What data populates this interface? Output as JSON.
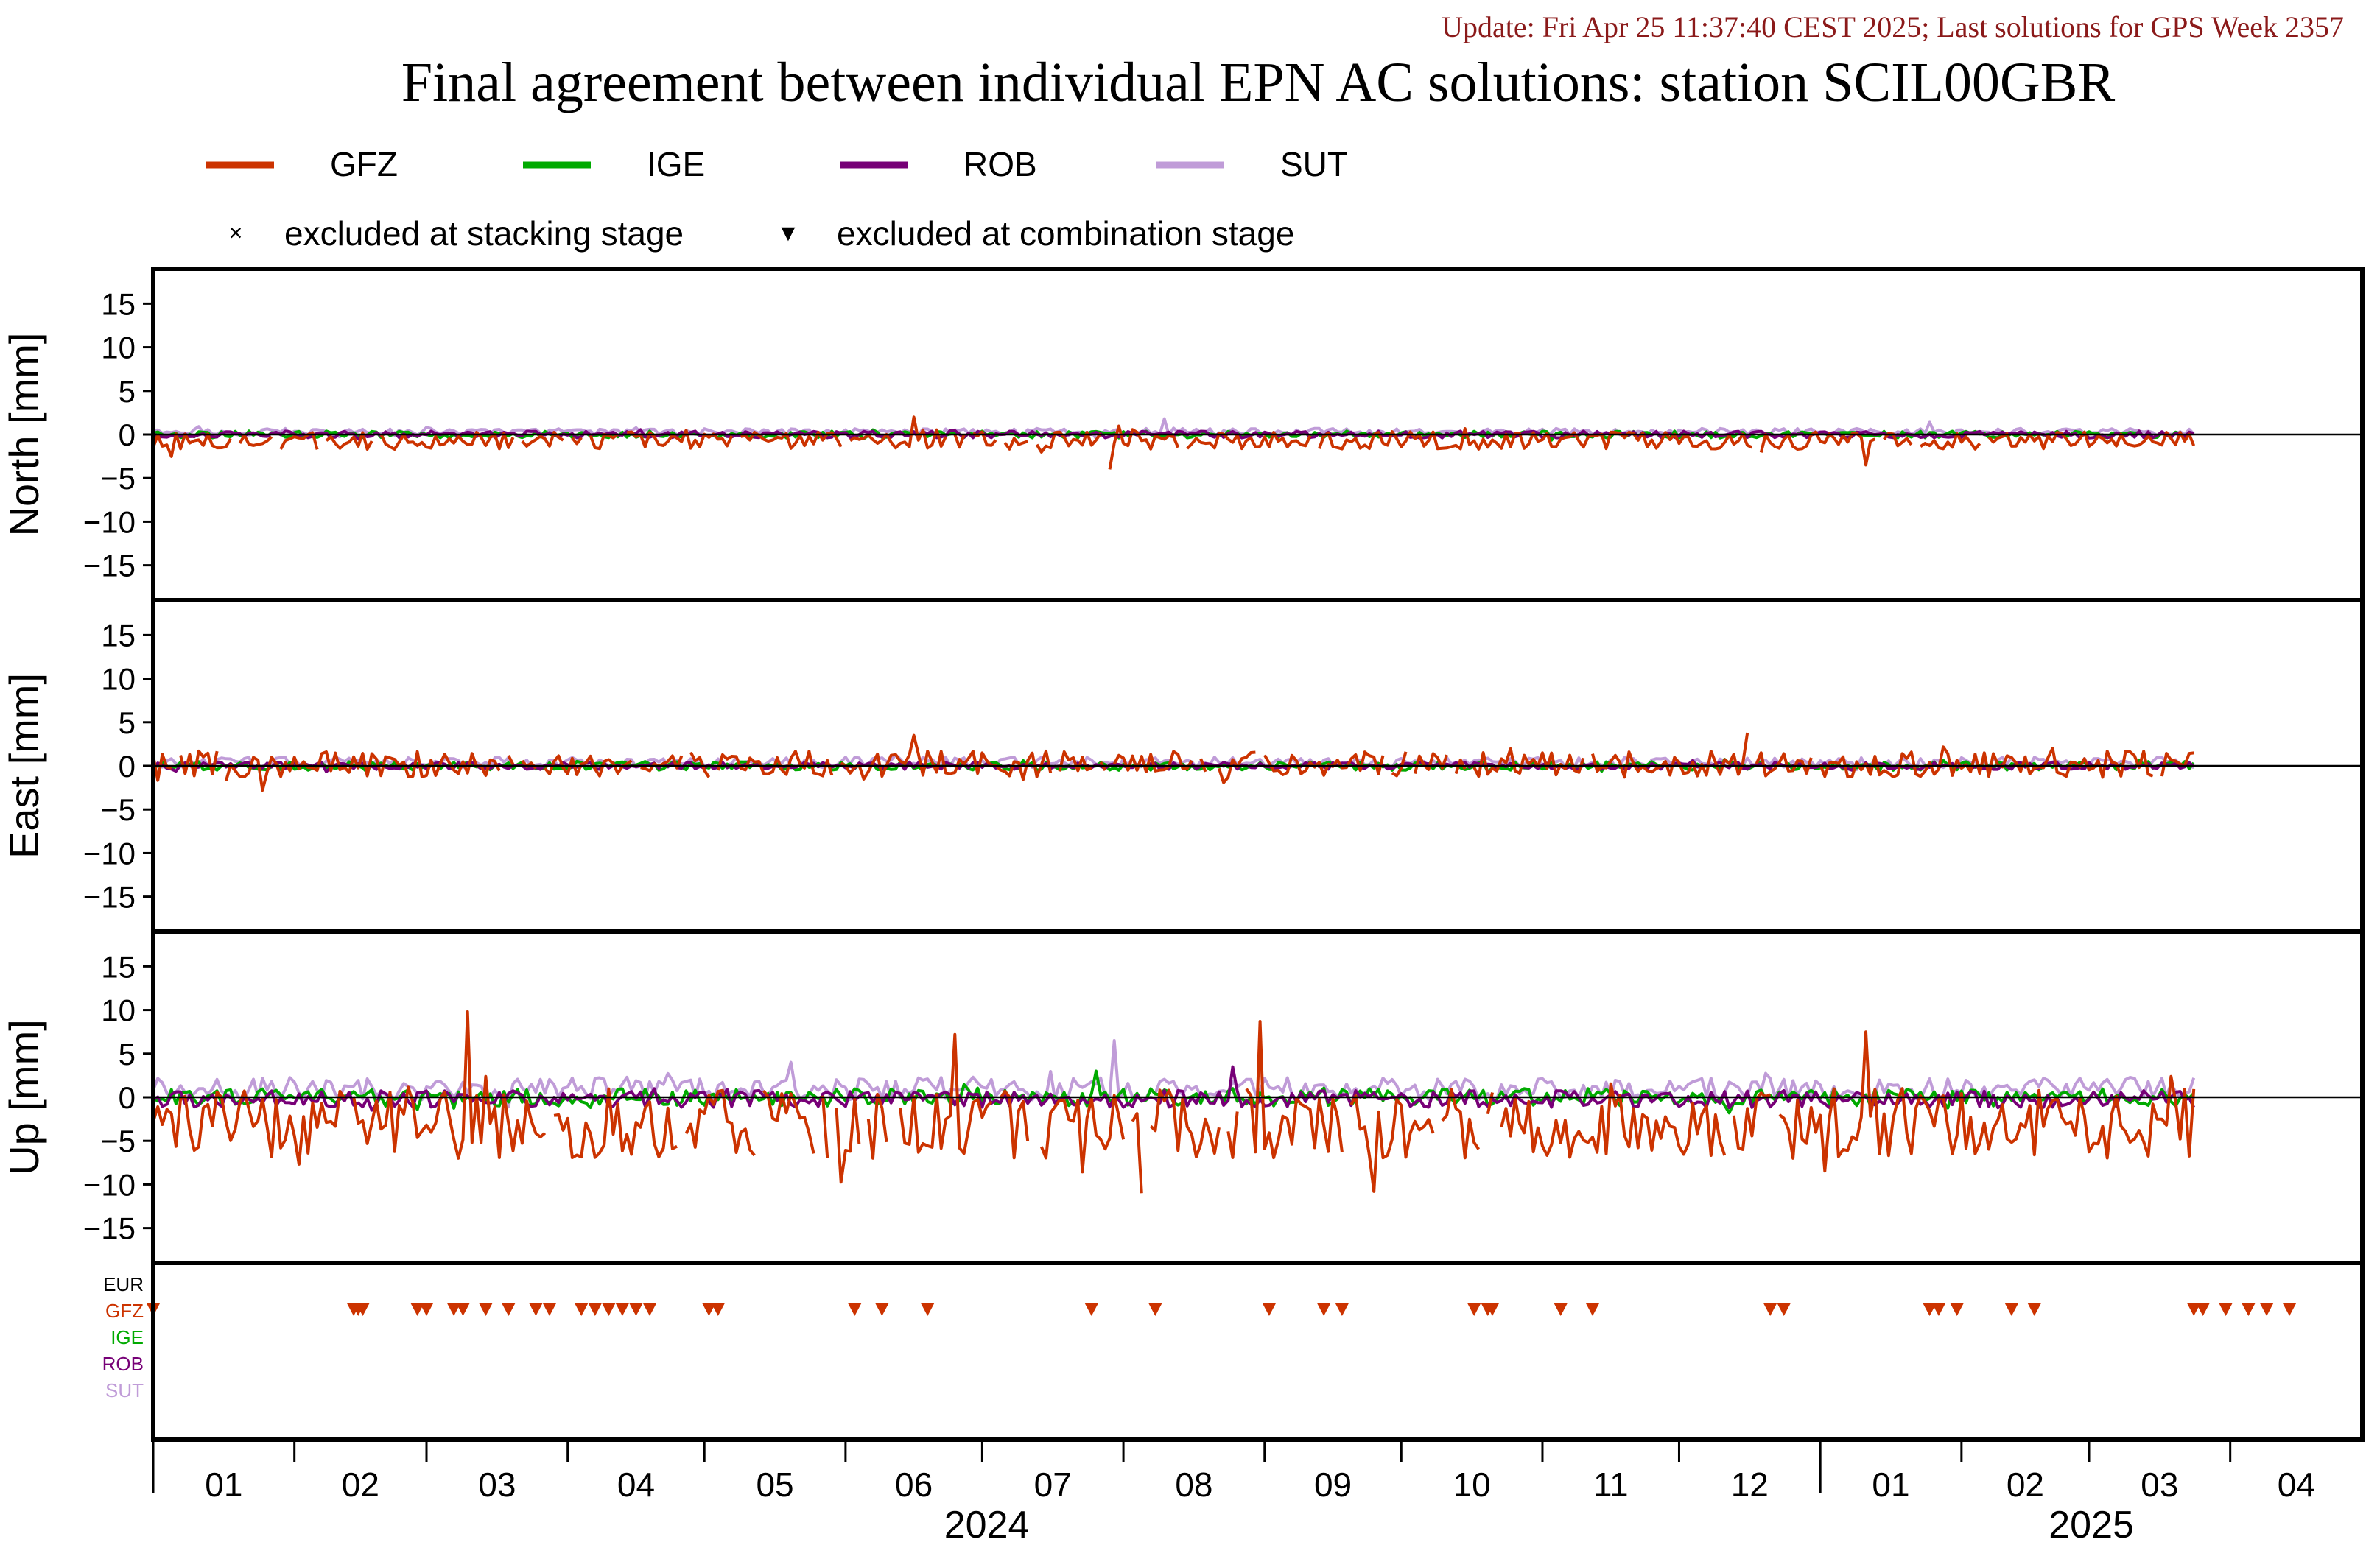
{
  "header": {
    "update": "Update: Fri Apr 25 11:37:40 CEST 2025; Last solutions for GPS Week 2357",
    "title": "Final agreement between individual EPN AC solutions: station SCIL00GBR"
  },
  "legend": {
    "series": [
      {
        "name": "GFZ",
        "color": "#cc3300"
      },
      {
        "name": "IGE",
        "color": "#00aa00"
      },
      {
        "name": "ROB",
        "color": "#770077"
      },
      {
        "name": "SUT",
        "color": "#c09cd8"
      }
    ],
    "markers": [
      {
        "symbol": "×",
        "label": "excluded at stacking stage"
      },
      {
        "symbol": "▼",
        "label": "excluded at combination stage"
      }
    ]
  },
  "exclusion_labels": [
    {
      "name": "EUR",
      "color": "#000000"
    },
    {
      "name": "GFZ",
      "color": "#cc3300"
    },
    {
      "name": "IGE",
      "color": "#00aa00"
    },
    {
      "name": "ROB",
      "color": "#770077"
    },
    {
      "name": "SUT",
      "color": "#c09cd8"
    }
  ],
  "x_axis": {
    "months": [
      "01",
      "02",
      "03",
      "04",
      "05",
      "06",
      "07",
      "08",
      "09",
      "10",
      "11",
      "12",
      "01",
      "02",
      "03",
      "04"
    ],
    "years": [
      "2024",
      "2025"
    ]
  },
  "chart_data": [
    {
      "type": "line",
      "ylabel": "North [mm]",
      "ylim": [
        -19,
        19
      ],
      "yticks": [
        15,
        10,
        5,
        0,
        -5,
        -10,
        -15
      ],
      "xlim": [
        "2024-01-01",
        "2025-04-30"
      ],
      "data_end": "2025-03-24",
      "series": [
        {
          "name": "GFZ",
          "mean": -0.7,
          "amplitude": 1.0,
          "spikes": [
            {
              "date": "2024-06-16",
              "value": 2.0
            },
            {
              "date": "2024-07-29",
              "value": -4.0
            },
            {
              "date": "2025-01-11",
              "value": -3.5
            }
          ]
        },
        {
          "name": "IGE",
          "mean": 0.0,
          "amplitude": 0.4,
          "spikes": []
        },
        {
          "name": "ROB",
          "mean": 0.0,
          "amplitude": 0.4,
          "spikes": []
        },
        {
          "name": "SUT",
          "mean": 0.3,
          "amplitude": 0.4,
          "spikes": [
            {
              "date": "2024-08-10",
              "value": 1.8
            },
            {
              "date": "2025-01-25",
              "value": 1.4
            }
          ]
        }
      ]
    },
    {
      "type": "line",
      "ylabel": "East [mm]",
      "ylim": [
        -19,
        19
      ],
      "yticks": [
        15,
        10,
        5,
        0,
        -5,
        -10,
        -15
      ],
      "xlim": [
        "2024-01-01",
        "2025-04-30"
      ],
      "data_end": "2025-03-24",
      "series": [
        {
          "name": "GFZ",
          "mean": 0.2,
          "amplitude": 1.5,
          "spikes": [
            {
              "date": "2024-06-16",
              "value": 3.5
            },
            {
              "date": "2024-12-16",
              "value": 3.8
            },
            {
              "date": "2024-01-25",
              "value": -2.8
            }
          ]
        },
        {
          "name": "IGE",
          "mean": 0.0,
          "amplitude": 0.5,
          "spikes": []
        },
        {
          "name": "ROB",
          "mean": 0.0,
          "amplitude": 0.4,
          "spikes": []
        },
        {
          "name": "SUT",
          "mean": 0.4,
          "amplitude": 0.6,
          "spikes": []
        }
      ]
    },
    {
      "type": "line",
      "ylabel": "Up [mm]",
      "ylim": [
        -19,
        19
      ],
      "yticks": [
        15,
        10,
        5,
        0,
        -5,
        -10,
        -15
      ],
      "xlim": [
        "2024-01-01",
        "2025-04-30"
      ],
      "data_end": "2025-03-24",
      "series": [
        {
          "name": "GFZ",
          "mean": -3.0,
          "amplitude": 4.0,
          "spikes": [
            {
              "date": "2024-03-10",
              "value": 9.8
            },
            {
              "date": "2024-08-31",
              "value": 8.7
            },
            {
              "date": "2024-06-25",
              "value": 7.2
            },
            {
              "date": "2025-01-11",
              "value": 7.5
            },
            {
              "date": "2024-08-05",
              "value": -11.0
            },
            {
              "date": "2024-09-25",
              "value": -10.8
            }
          ]
        },
        {
          "name": "IGE",
          "mean": 0.0,
          "amplitude": 1.0,
          "spikes": [
            {
              "date": "2024-07-26",
              "value": 3.0
            }
          ]
        },
        {
          "name": "ROB",
          "mean": -0.2,
          "amplitude": 1.0,
          "spikes": [
            {
              "date": "2024-08-25",
              "value": 3.5
            }
          ]
        },
        {
          "name": "SUT",
          "mean": 1.0,
          "amplitude": 1.3,
          "spikes": [
            {
              "date": "2024-07-30",
              "value": 6.5
            },
            {
              "date": "2024-05-20",
              "value": 4.0
            }
          ]
        }
      ]
    },
    {
      "type": "scatter",
      "marker": "triangle-down",
      "series": [
        {
          "name": "EUR",
          "dates": []
        },
        {
          "name": "GFZ",
          "dates": [
            "2024-01-01",
            "2024-02-14",
            "2024-02-15",
            "2024-02-16",
            "2024-02-28",
            "2024-03-01",
            "2024-03-07",
            "2024-03-09",
            "2024-03-14",
            "2024-03-19",
            "2024-03-25",
            "2024-03-28",
            "2024-04-04",
            "2024-04-07",
            "2024-04-10",
            "2024-04-13",
            "2024-04-16",
            "2024-04-19",
            "2024-05-02",
            "2024-05-04",
            "2024-06-03",
            "2024-06-09",
            "2024-06-19",
            "2024-07-25",
            "2024-08-08",
            "2024-09-02",
            "2024-09-14",
            "2024-09-18",
            "2024-10-17",
            "2024-10-20",
            "2024-10-21",
            "2024-11-05",
            "2024-11-12",
            "2024-12-21",
            "2024-12-24",
            "2025-01-25",
            "2025-01-27",
            "2025-01-31",
            "2025-02-12",
            "2025-02-17",
            "2025-03-24",
            "2025-03-26",
            "2025-03-31",
            "2025-04-05",
            "2025-04-09",
            "2025-04-14"
          ]
        },
        {
          "name": "IGE",
          "dates": []
        },
        {
          "name": "ROB",
          "dates": []
        },
        {
          "name": "SUT",
          "dates": []
        }
      ]
    }
  ]
}
